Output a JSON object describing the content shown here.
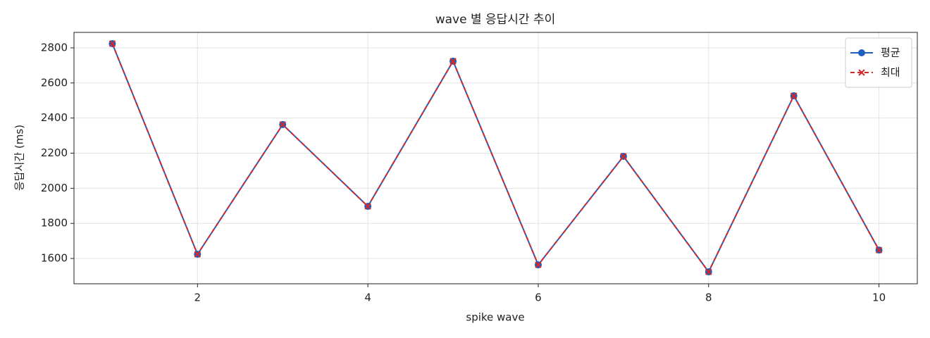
{
  "chart_data": {
    "type": "line",
    "title": "wave 별 응답시간 추이",
    "x_label": "spike wave",
    "y_label": "응답시간 (ms)",
    "x": [
      1,
      2,
      3,
      4,
      5,
      6,
      7,
      8,
      9,
      10
    ],
    "series": [
      {
        "name": "평균",
        "color": "#1f5fbf",
        "linestyle": "solid",
        "marker": "o",
        "values": [
          2824,
          1624,
          2363,
          1897,
          2724,
          1564,
          2182,
          1524,
          2527,
          1648
        ]
      },
      {
        "name": "최대",
        "color": "#d62728",
        "linestyle": "dashed",
        "marker": "x",
        "values": [
          2824,
          1624,
          2363,
          1897,
          2724,
          1564,
          2182,
          1524,
          2527,
          1648
        ]
      }
    ],
    "xlim": [
      0.55,
      10.45
    ],
    "ylim": [
      1456,
      2888
    ],
    "xticks": [
      2,
      4,
      6,
      8,
      10
    ],
    "yticks": [
      1600,
      1800,
      2000,
      2200,
      2400,
      2600,
      2800
    ],
    "grid": true,
    "legend": "upper right"
  }
}
